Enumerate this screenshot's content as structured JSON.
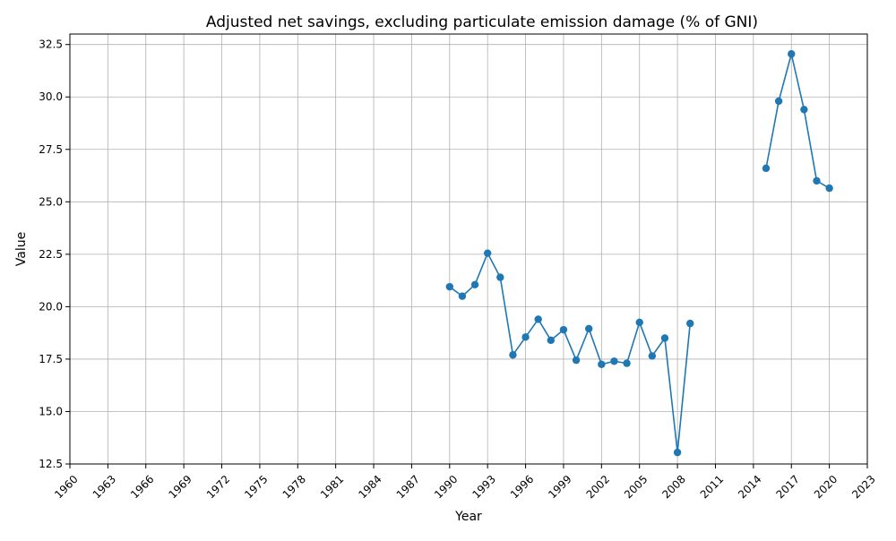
{
  "chart_data": {
    "type": "line",
    "title": "Adjusted net savings, excluding particulate emission damage (% of GNI)",
    "xlabel": "Year",
    "ylabel": "Value",
    "xlim": [
      1960,
      2023
    ],
    "ylim": [
      12.5,
      33.0
    ],
    "grid": true,
    "legend": "none",
    "x_ticks": [
      1960,
      1963,
      1966,
      1969,
      1972,
      1975,
      1978,
      1981,
      1984,
      1987,
      1990,
      1993,
      1996,
      1999,
      2002,
      2005,
      2008,
      2011,
      2014,
      2017,
      2020,
      2023
    ],
    "y_ticks": [
      "12.5",
      "15.0",
      "17.5",
      "20.0",
      "22.5",
      "25.0",
      "27.5",
      "30.0",
      "32.5"
    ],
    "series": [
      {
        "color": "#1f77b4",
        "segments": [
          {
            "x": [
              1990,
              1991,
              1992,
              1993,
              1994,
              1995,
              1996,
              1997,
              1998,
              1999,
              2000,
              2001,
              2002,
              2003,
              2004,
              2005,
              2006,
              2007,
              2008,
              2009
            ],
            "y": [
              20.95,
              20.5,
              21.05,
              22.55,
              21.4,
              17.7,
              18.55,
              19.4,
              18.4,
              18.9,
              17.45,
              18.95,
              17.25,
              17.4,
              17.3,
              19.25,
              17.65,
              18.5,
              13.05,
              19.2
            ]
          },
          {
            "x": [
              2015,
              2016,
              2017,
              2018,
              2019,
              2020
            ],
            "y": [
              26.6,
              29.8,
              32.05,
              29.4,
              26.0,
              25.65
            ]
          }
        ]
      }
    ]
  }
}
